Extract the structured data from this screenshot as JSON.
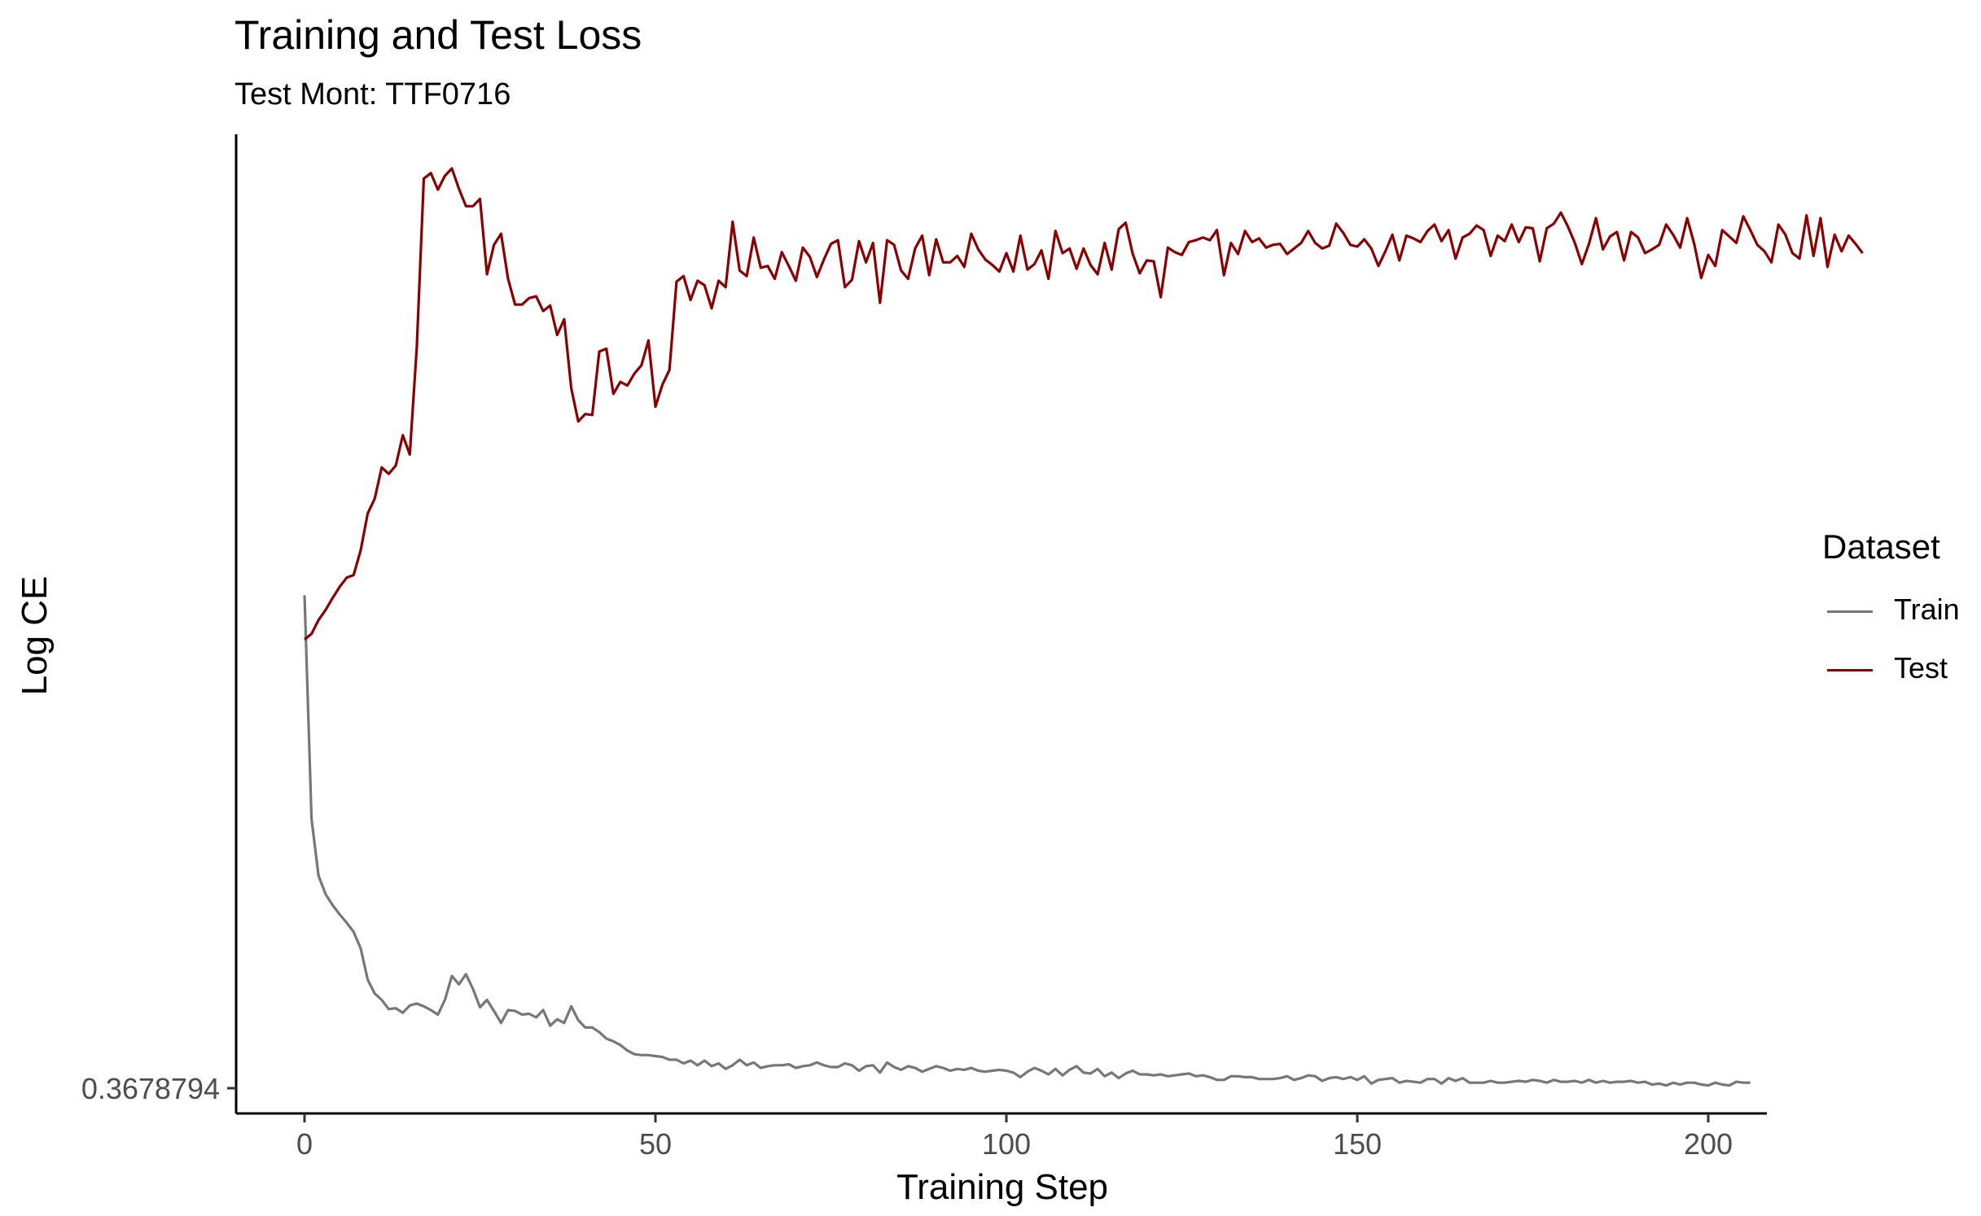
{
  "chart_data": {
    "type": "line",
    "title": "Training and Test Loss",
    "subtitle": "Test Mont: TTF0716",
    "xlabel": "Training Step",
    "ylabel": "Log CE",
    "x_ticks": [
      0,
      50,
      100,
      150,
      200
    ],
    "y_tick_labels": [
      "0.3678794"
    ],
    "xlim": [
      -10,
      209
    ],
    "grid": false,
    "legend": {
      "title": "Dataset",
      "position": "right"
    },
    "series": [
      {
        "name": "Train",
        "color": "#777777",
        "values": [
          0.536,
          0.293,
          0.231,
          0.211,
          0.199,
          0.189,
          0.18,
          0.17,
          0.152,
          0.118,
          0.103,
          0.096,
          0.086,
          0.087,
          0.082,
          0.09,
          0.092,
          0.089,
          0.085,
          0.08,
          0.096,
          0.122,
          0.113,
          0.124,
          0.108,
          0.088,
          0.096,
          0.084,
          0.071,
          0.085,
          0.084,
          0.08,
          0.081,
          0.077,
          0.085,
          0.068,
          0.075,
          0.071,
          0.089,
          0.074,
          0.066,
          0.066,
          0.061,
          0.054,
          0.051,
          0.047,
          0.041,
          0.037,
          0.036,
          0.036,
          0.035,
          0.034,
          0.031,
          0.031,
          0.027,
          0.03,
          0.025,
          0.03,
          0.024,
          0.027,
          0.021,
          0.025,
          0.031,
          0.025,
          0.028,
          0.022,
          0.024,
          0.025,
          0.025,
          0.026,
          0.022,
          0.024,
          0.025,
          0.028,
          0.025,
          0.023,
          0.023,
          0.027,
          0.025,
          0.019,
          0.024,
          0.025,
          0.017,
          0.028,
          0.023,
          0.02,
          0.024,
          0.022,
          0.018,
          0.021,
          0.024,
          0.022,
          0.019,
          0.021,
          0.02,
          0.022,
          0.019,
          0.018,
          0.019,
          0.02,
          0.019,
          0.017,
          0.012,
          0.018,
          0.022,
          0.019,
          0.015,
          0.021,
          0.014,
          0.02,
          0.024,
          0.017,
          0.016,
          0.021,
          0.013,
          0.017,
          0.011,
          0.016,
          0.019,
          0.015,
          0.015,
          0.014,
          0.015,
          0.013,
          0.014,
          0.015,
          0.016,
          0.013,
          0.014,
          0.012,
          0.009,
          0.009,
          0.013,
          0.013,
          0.012,
          0.012,
          0.01,
          0.01,
          0.01,
          0.011,
          0.013,
          0.009,
          0.011,
          0.014,
          0.013,
          0.008,
          0.011,
          0.012,
          0.01,
          0.012,
          0.009,
          0.013,
          0.005,
          0.009,
          0.01,
          0.011,
          0.006,
          0.008,
          0.007,
          0.006,
          0.01,
          0.01,
          0.005,
          0.011,
          0.008,
          0.011,
          0.006,
          0.006,
          0.006,
          0.008,
          0.006,
          0.006,
          0.007,
          0.008,
          0.007,
          0.009,
          0.008,
          0.006,
          0.009,
          0.007,
          0.007,
          0.008,
          0.006,
          0.009,
          0.006,
          0.008,
          0.006,
          0.007,
          0.007,
          0.008,
          0.006,
          0.007,
          0.004,
          0.005,
          0.003,
          0.006,
          0.004,
          0.006,
          0.006,
          0.004,
          0.003,
          0.006,
          0.004,
          0.003,
          0.007,
          0.006,
          0.006
        ]
      },
      {
        "name": "Test",
        "color": "#8B0000",
        "values": [
          0.488,
          0.494,
          0.509,
          0.52,
          0.533,
          0.545,
          0.555,
          0.558,
          0.585,
          0.625,
          0.641,
          0.675,
          0.668,
          0.677,
          0.71,
          0.689,
          0.806,
          0.989,
          0.995,
          0.977,
          0.992,
          1.0,
          0.978,
          0.959,
          0.959,
          0.967,
          0.885,
          0.917,
          0.929,
          0.88,
          0.852,
          0.852,
          0.859,
          0.861,
          0.845,
          0.851,
          0.819,
          0.836,
          0.761,
          0.725,
          0.733,
          0.732,
          0.801,
          0.804,
          0.755,
          0.768,
          0.764,
          0.777,
          0.786,
          0.813,
          0.741,
          0.765,
          0.781,
          0.877,
          0.883,
          0.857,
          0.878,
          0.873,
          0.848,
          0.878,
          0.871,
          0.942,
          0.889,
          0.883,
          0.925,
          0.892,
          0.894,
          0.88,
          0.909,
          0.894,
          0.878,
          0.914,
          0.904,
          0.882,
          0.901,
          0.918,
          0.922,
          0.871,
          0.879,
          0.921,
          0.898,
          0.919,
          0.854,
          0.922,
          0.917,
          0.889,
          0.88,
          0.913,
          0.927,
          0.884,
          0.923,
          0.898,
          0.898,
          0.905,
          0.893,
          0.929,
          0.912,
          0.901,
          0.895,
          0.888,
          0.908,
          0.888,
          0.927,
          0.89,
          0.896,
          0.911,
          0.88,
          0.932,
          0.908,
          0.913,
          0.891,
          0.913,
          0.895,
          0.885,
          0.919,
          0.89,
          0.934,
          0.941,
          0.907,
          0.886,
          0.9,
          0.899,
          0.86,
          0.914,
          0.909,
          0.906,
          0.92,
          0.922,
          0.925,
          0.922,
          0.933,
          0.884,
          0.919,
          0.907,
          0.932,
          0.92,
          0.924,
          0.914,
          0.917,
          0.918,
          0.907,
          0.913,
          0.919,
          0.932,
          0.919,
          0.913,
          0.916,
          0.94,
          0.93,
          0.917,
          0.915,
          0.923,
          0.913,
          0.894,
          0.91,
          0.928,
          0.9,
          0.927,
          0.924,
          0.92,
          0.932,
          0.939,
          0.921,
          0.933,
          0.902,
          0.925,
          0.929,
          0.938,
          0.933,
          0.905,
          0.927,
          0.921,
          0.939,
          0.92,
          0.936,
          0.935,
          0.899,
          0.935,
          0.94,
          0.952,
          0.937,
          0.919,
          0.896,
          0.918,
          0.946,
          0.912,
          0.926,
          0.931,
          0.9,
          0.931,
          0.925,
          0.908,
          0.912,
          0.917,
          0.939,
          0.928,
          0.914,
          0.946,
          0.918,
          0.881,
          0.906,
          0.894,
          0.933,
          0.926,
          0.919,
          0.948,
          0.933,
          0.917,
          0.91,
          0.898,
          0.939,
          0.928,
          0.908,
          0.902,
          0.949,
          0.905,
          0.946,
          0.893,
          0.928,
          0.91,
          0.927,
          0.918,
          0.908
        ]
      }
    ]
  }
}
